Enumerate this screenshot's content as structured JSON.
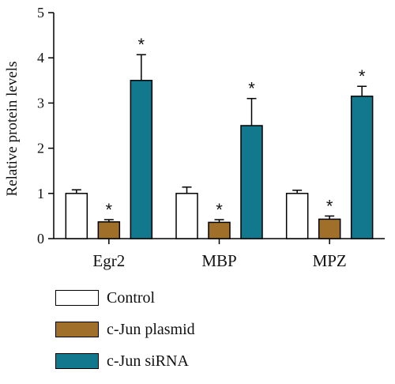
{
  "chart_data": {
    "type": "bar",
    "title": "",
    "xlabel": "",
    "ylabel": "Relative protein levels",
    "ylim": [
      0,
      5
    ],
    "yticks": [
      0,
      1,
      2,
      3,
      4,
      5
    ],
    "categories": [
      "Egr2",
      "MBP",
      "MPZ"
    ],
    "series": [
      {
        "name": "Control",
        "color": "#ffffff",
        "values": [
          1.0,
          1.0,
          1.0
        ],
        "errors": [
          0.08,
          0.14,
          0.07
        ],
        "significance": [
          "",
          "",
          ""
        ]
      },
      {
        "name": "c-Jun plasmid",
        "color": "#a0702a",
        "values": [
          0.37,
          0.36,
          0.43
        ],
        "errors": [
          0.05,
          0.06,
          0.07
        ],
        "significance": [
          "*",
          "*",
          "*"
        ]
      },
      {
        "name": "c-Jun siRNA",
        "color": "#11788e",
        "values": [
          3.5,
          2.5,
          3.15
        ],
        "errors": [
          0.57,
          0.6,
          0.22
        ],
        "significance": [
          "*",
          "*",
          "*"
        ]
      }
    ],
    "grid": false,
    "legend_position": "bottom-left"
  }
}
